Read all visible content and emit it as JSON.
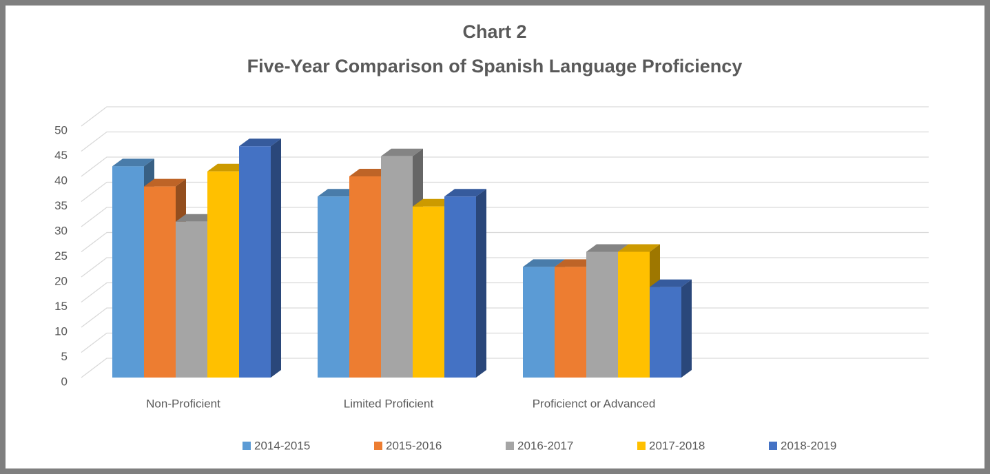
{
  "chart_data": {
    "type": "bar3d",
    "title": "Chart 2",
    "subtitle": "Five-Year Comparison of Spanish Language Proficiency",
    "categories": [
      "Non-Proficient",
      "Limited Proficient",
      "Proficienct or Advanced"
    ],
    "series": [
      {
        "name": "2014-2015",
        "color": "#5b9bd5",
        "values": [
          42,
          36,
          22
        ]
      },
      {
        "name": "2015-2016",
        "color": "#ed7d31",
        "values": [
          38,
          40,
          22
        ]
      },
      {
        "name": "2016-2017",
        "color": "#a5a5a5",
        "values": [
          31,
          44,
          25
        ]
      },
      {
        "name": "2017-2018",
        "color": "#ffc000",
        "values": [
          41,
          34,
          25
        ]
      },
      {
        "name": "2018-2019",
        "color": "#4472c4",
        "values": [
          46,
          36,
          18
        ]
      }
    ],
    "ylim": [
      0,
      50
    ],
    "yticks": [
      0,
      5,
      10,
      15,
      20,
      25,
      30,
      35,
      40,
      45,
      50
    ],
    "grid": true,
    "legend": "bottom"
  }
}
